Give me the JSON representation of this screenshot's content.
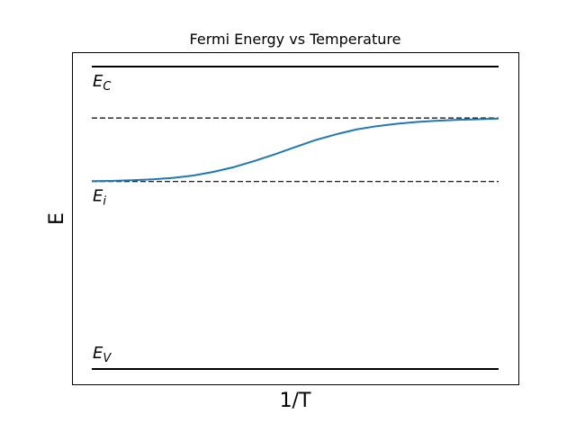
{
  "chart_data": {
    "type": "line",
    "title": "Fermi Energy vs Temperature",
    "xlabel": "1/T",
    "ylabel": "E",
    "xticks": false,
    "yticks": false,
    "grid": false,
    "xlim": [
      0,
      1
    ],
    "ylim": [
      -0.05,
      1.05
    ],
    "levels": [
      {
        "id": "Ec",
        "base": "E",
        "sub": "C",
        "value": 1.0,
        "style": "solid"
      },
      {
        "id": "Ed",
        "base": "",
        "sub": "",
        "value": 0.83,
        "style": "dashed"
      },
      {
        "id": "Ei",
        "base": "E",
        "sub": "i",
        "value": 0.62,
        "style": "dashed"
      },
      {
        "id": "Ev",
        "base": "E",
        "sub": "V",
        "value": 0.0,
        "style": "solid"
      }
    ],
    "series": [
      {
        "x": [
          0.0,
          0.05,
          0.1,
          0.15,
          0.2,
          0.25,
          0.3,
          0.35,
          0.4,
          0.45,
          0.5,
          0.55,
          0.6,
          0.65,
          0.7,
          0.75,
          0.8,
          0.85,
          0.9,
          0.95,
          1.0
        ],
        "y": [
          0.621,
          0.622,
          0.624,
          0.627,
          0.632,
          0.64,
          0.652,
          0.668,
          0.688,
          0.71,
          0.734,
          0.757,
          0.776,
          0.792,
          0.803,
          0.811,
          0.817,
          0.821,
          0.824,
          0.826,
          0.828
        ],
        "color": "#1f77b4"
      }
    ]
  }
}
